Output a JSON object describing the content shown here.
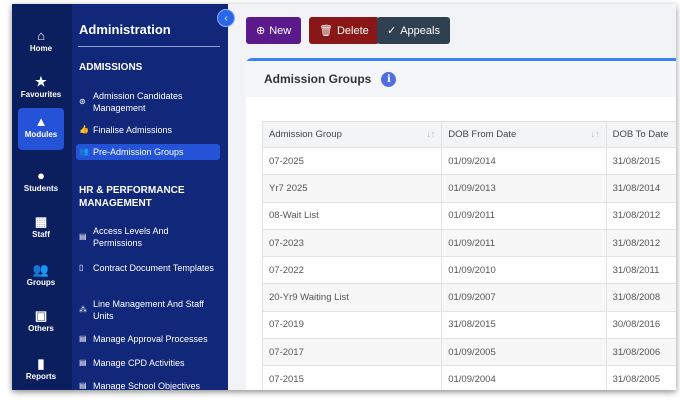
{
  "rail": [
    {
      "label": "Home",
      "icon": "home-icon",
      "glyph": "⌂"
    },
    {
      "label": "Favourites",
      "icon": "star-icon",
      "glyph": "★"
    },
    {
      "label": "Modules",
      "icon": "shapes-icon",
      "glyph": "▲",
      "active": true
    },
    {
      "label": "Students",
      "icon": "user-icon",
      "glyph": "●"
    },
    {
      "label": "Staff",
      "icon": "staff-icon",
      "glyph": "▦"
    },
    {
      "label": "Groups",
      "icon": "users-icon",
      "glyph": "👥"
    },
    {
      "label": "Others",
      "icon": "others-icon",
      "glyph": "▣"
    },
    {
      "label": "Reports",
      "icon": "file-icon",
      "glyph": "▮"
    }
  ],
  "sidebar": {
    "title": "Administration",
    "sections": [
      {
        "title": "ADMISSIONS"
      },
      {
        "title": "HR & PERFORMANCE MANAGEMENT"
      }
    ],
    "items": [
      {
        "label": "Admission Candidates Management",
        "glyph": "⊛"
      },
      {
        "label": "Finalise Admissions",
        "glyph": "👍"
      },
      {
        "label": "Pre-Admission Groups",
        "glyph": "👥"
      },
      {
        "label": "Access Levels And Permissions",
        "glyph": "▤"
      },
      {
        "label": "Contract Document Templates",
        "glyph": "▯"
      },
      {
        "label": "Line Management And Staff Units",
        "glyph": "⁂"
      },
      {
        "label": "Manage Approval Processes",
        "glyph": "▤"
      },
      {
        "label": "Manage CPD Activities",
        "glyph": "▤"
      },
      {
        "label": "Manage School Objectives",
        "glyph": "▤"
      }
    ]
  },
  "toolbar": {
    "new": "New",
    "delete": "Delete",
    "appeals": "Appeals"
  },
  "colors": {
    "new": "#5b1a8c",
    "delete": "#8a1717",
    "appeals": "#2f4050",
    "accent": "#3b82f6"
  },
  "card": {
    "title": "Admission Groups"
  },
  "table": {
    "columns": [
      "Admission Group",
      "DOB From Date",
      "DOB To Date"
    ],
    "rows": [
      [
        "07-2025",
        "01/09/2014",
        "31/08/2015"
      ],
      [
        "Yr7 2025",
        "01/09/2013",
        "31/08/2014"
      ],
      [
        "08-Wait List",
        "01/09/2011",
        "31/08/2012"
      ],
      [
        "07-2023",
        "01/09/2011",
        "31/08/2012"
      ],
      [
        "07-2022",
        "01/09/2010",
        "31/08/2011"
      ],
      [
        "20-Yr9 Waiting List",
        "01/09/2007",
        "31/08/2008"
      ],
      [
        "07-2019",
        "31/08/2015",
        "30/08/2016"
      ],
      [
        "07-2017",
        "01/09/2005",
        "31/08/2006"
      ],
      [
        "07-2015",
        "01/09/2004",
        "31/08/2005"
      ]
    ]
  }
}
